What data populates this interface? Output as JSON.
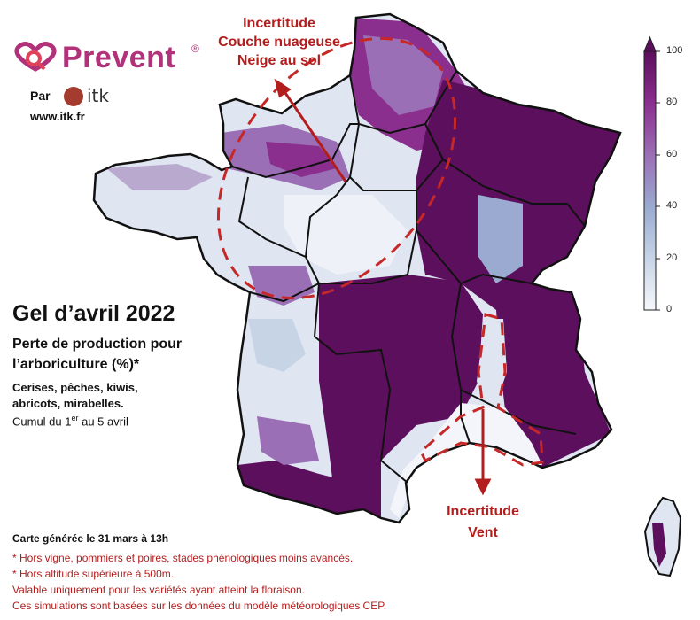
{
  "branding": {
    "logo_text": "Prevent",
    "logo_reg": "®",
    "par_label": "Par",
    "partner": "itk",
    "website": "www.itk.fr"
  },
  "title": {
    "main": "Gel d’avril 2022",
    "subtitle_line1": "Perte de production pour",
    "subtitle_line2": "l’arboriculture (%)*",
    "crops_line1": "Cerises, pêches, kiwis,",
    "crops_line2": "abricots, mirabelles.",
    "cumul_prefix": "Cumul du 1",
    "cumul_sup": "er",
    "cumul_suffix": " au 5 avril"
  },
  "annotations": {
    "north": [
      "Incertitude",
      "Couche nuageuse",
      "Neige au sol"
    ],
    "south": [
      "Incertitude",
      "Vent"
    ]
  },
  "colorbar": {
    "ticks": [
      "100",
      "80",
      "60",
      "40",
      "20",
      "0"
    ],
    "min": 0,
    "max": 100,
    "colors": [
      "#f6f8fb",
      "#c6d4e6",
      "#9aaad0",
      "#9b6fb5",
      "#8a2f8e",
      "#5c0f5c"
    ]
  },
  "footer": {
    "generated": "Carte générée le 31 mars à 13h",
    "note1": "* Hors vigne, pommiers et poires, stades phénologiques moins avancés.",
    "note2": "* Hors altitude supérieure à 500m.",
    "note3": "Valable uniquement pour les variétés ayant atteint la floraison.",
    "note4": "Ces simulations sont basées sur les données du modèle météorologiques CEP."
  },
  "colors": {
    "accent": "#b21e1e",
    "brand": "#b1327a",
    "high_loss": "#5c0f5c",
    "no_loss": "#f6f8fb"
  }
}
